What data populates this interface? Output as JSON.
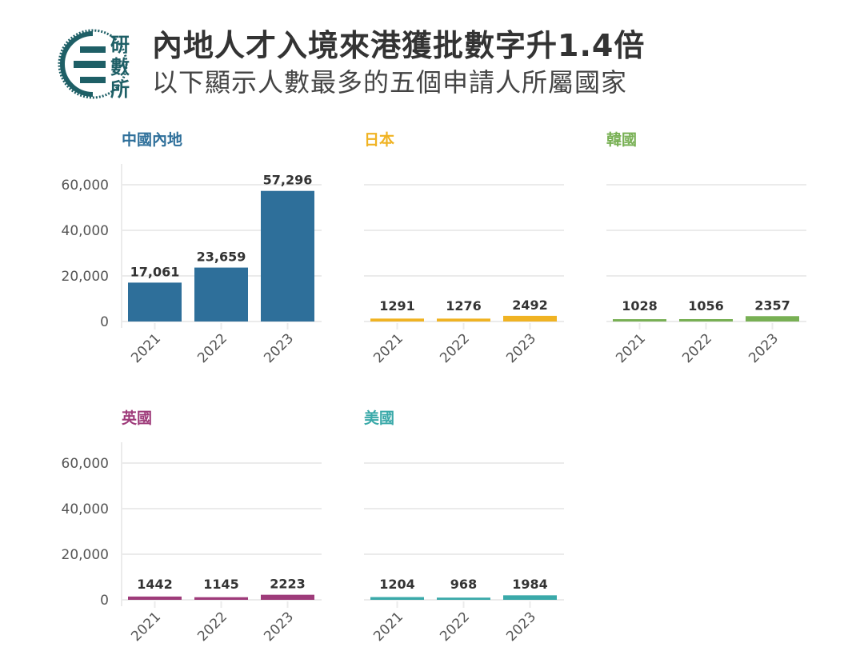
{
  "header": {
    "title": "內地人才入境來港獲批數字升1.4倍",
    "subtitle": "以下顯示人數最多的五個申請人所屬國家",
    "logo_text": "研數所",
    "logo_color": "#1e5f66"
  },
  "chart_data": [
    {
      "type": "bar",
      "title": "中國內地",
      "color": "#2e6f9a",
      "categories": [
        "2021",
        "2022",
        "2023"
      ],
      "values": [
        17061,
        23659,
        57296
      ],
      "labels": [
        "17,061",
        "23,659",
        "57,296"
      ],
      "ylim": [
        0,
        65000
      ],
      "yticks": [
        "0",
        "20,000",
        "40,000",
        "60,000"
      ],
      "grid": true
    },
    {
      "type": "bar",
      "title": "日本",
      "color": "#f0b323",
      "categories": [
        "2021",
        "2022",
        "2023"
      ],
      "values": [
        1291,
        1276,
        2492
      ],
      "labels": [
        "1291",
        "1276",
        "2492"
      ],
      "ylim": [
        0,
        65000
      ],
      "grid": true
    },
    {
      "type": "bar",
      "title": "韓國",
      "color": "#78b054",
      "categories": [
        "2021",
        "2022",
        "2023"
      ],
      "values": [
        1028,
        1056,
        2357
      ],
      "labels": [
        "1028",
        "1056",
        "2357"
      ],
      "ylim": [
        0,
        65000
      ],
      "grid": true
    },
    {
      "type": "bar",
      "title": "英國",
      "color": "#9e3b7a",
      "categories": [
        "2021",
        "2022",
        "2023"
      ],
      "values": [
        1442,
        1145,
        2223
      ],
      "labels": [
        "1442",
        "1145",
        "2223"
      ],
      "ylim": [
        0,
        65000
      ],
      "yticks": [
        "0",
        "20,000",
        "40,000",
        "60,000"
      ],
      "grid": true
    },
    {
      "type": "bar",
      "title": "美國",
      "color": "#3aa9a9",
      "categories": [
        "2021",
        "2022",
        "2023"
      ],
      "values": [
        1204,
        968,
        1984
      ],
      "labels": [
        "1204",
        "968",
        "1984"
      ],
      "ylim": [
        0,
        65000
      ],
      "grid": true
    }
  ]
}
